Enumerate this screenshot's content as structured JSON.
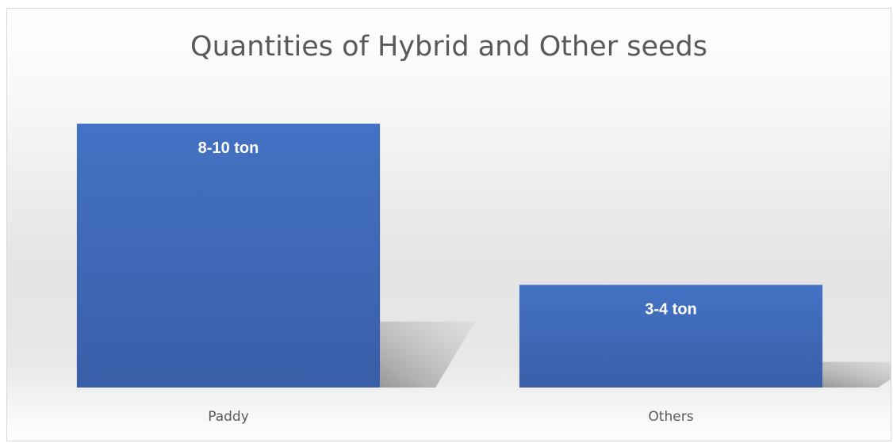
{
  "chart_data": {
    "type": "bar",
    "title": "Quantities of Hybrid and Other seeds",
    "xlabel": "",
    "ylabel": "",
    "categories": [
      "Paddy",
      "Others"
    ],
    "values": [
      9,
      3.5
    ],
    "data_labels": [
      "8-10 ton",
      "3-4 ton"
    ],
    "ylim": [
      0,
      10
    ],
    "grid": false,
    "legend": "none",
    "colors": {
      "bar_top": "#4472c4",
      "bar_bottom": "#3a5ea8",
      "shadow": "#9a9a9a",
      "text": "#595959",
      "label": "#ffffff"
    }
  }
}
